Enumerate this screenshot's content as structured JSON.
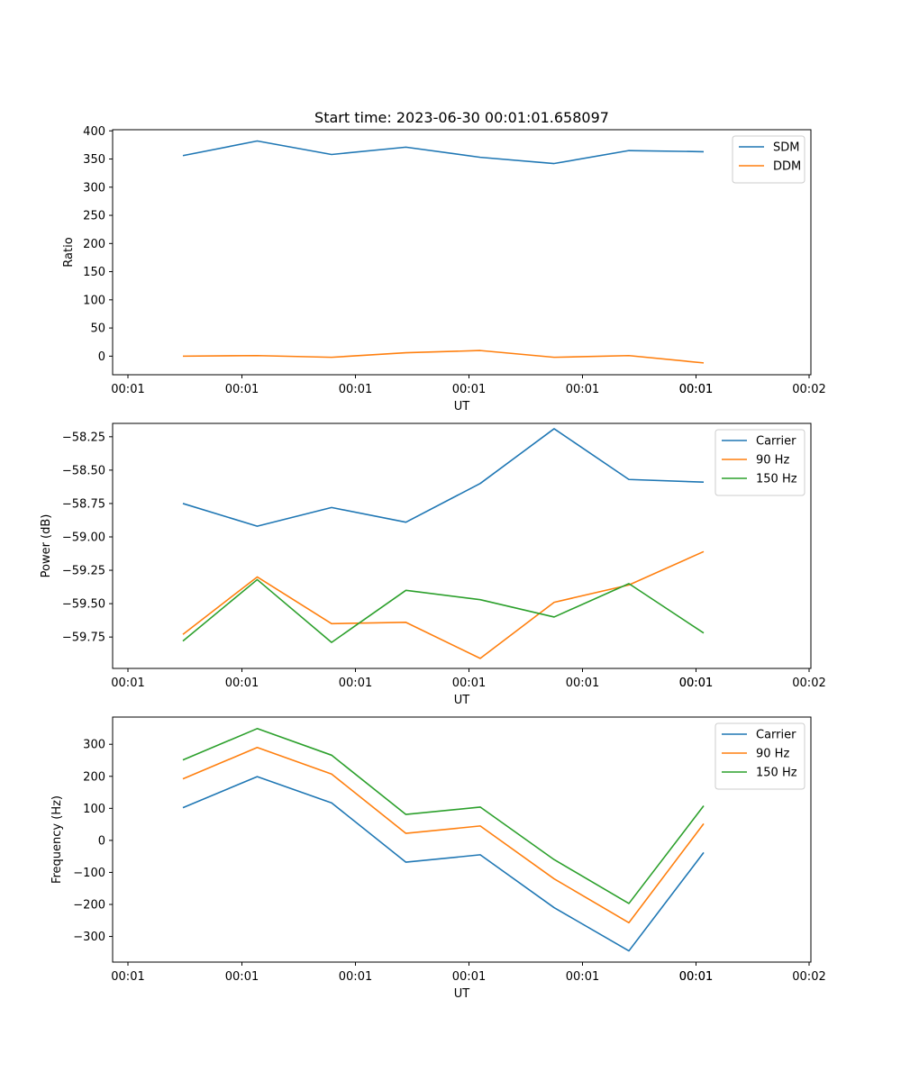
{
  "figure": {
    "title": "Start time: 2023-06-30 00:01:01.658097"
  },
  "chart_data": [
    {
      "type": "line",
      "title": "Start time: 2023-06-30 00:01:01.658097",
      "xlabel": "UT",
      "ylabel": "Ratio",
      "x_tick_labels": [
        "00:01",
        "00:01",
        "00:01",
        "00:01",
        "00:01",
        "00:01",
        "00:01",
        "00:02"
      ],
      "y_ticks": [
        0,
        50,
        100,
        150,
        200,
        250,
        300,
        350,
        400
      ],
      "ylim": [
        -33,
        402
      ],
      "x_points": 8,
      "legend": "top-right",
      "grid": false,
      "series": [
        {
          "name": "SDM",
          "color": "#1f77b4",
          "values": [
            356,
            382,
            358,
            371,
            353,
            342,
            365,
            363
          ]
        },
        {
          "name": "DDM",
          "color": "#ff7f0e",
          "values": [
            0,
            1,
            -2,
            6,
            10,
            -2,
            1,
            -12
          ]
        }
      ]
    },
    {
      "type": "line",
      "title": "",
      "xlabel": "UT",
      "ylabel": "Power (dB)",
      "x_tick_labels": [
        "00:01",
        "00:01",
        "00:01",
        "00:01",
        "00:01",
        "00:01",
        "00:01",
        "00:02"
      ],
      "y_ticks": [
        -59.75,
        -59.5,
        -59.25,
        -59.0,
        -58.75,
        -58.5,
        -58.25
      ],
      "y_tick_labels": [
        "−59.75",
        "−59.50",
        "−59.25",
        "−59.00",
        "−58.75",
        "−58.50",
        "−58.25"
      ],
      "ylim": [
        -59.985,
        -58.15
      ],
      "x_points": 8,
      "legend": "top-right",
      "grid": false,
      "series": [
        {
          "name": "Carrier",
          "color": "#1f77b4",
          "values": [
            -58.75,
            -58.92,
            -58.78,
            -58.89,
            -58.6,
            -58.19,
            -58.57,
            -58.59
          ]
        },
        {
          "name": "90 Hz",
          "color": "#ff7f0e",
          "values": [
            -59.73,
            -59.3,
            -59.65,
            -59.64,
            -59.91,
            -59.49,
            -59.36,
            -59.11
          ]
        },
        {
          "name": "150 Hz",
          "color": "#2ca02c",
          "values": [
            -59.78,
            -59.32,
            -59.79,
            -59.4,
            -59.47,
            -59.6,
            -59.35,
            -59.72
          ]
        }
      ]
    },
    {
      "type": "line",
      "title": "",
      "xlabel": "UT",
      "ylabel": "Frequency (Hz)",
      "x_tick_labels": [
        "00:01",
        "00:01",
        "00:01",
        "00:01",
        "00:01",
        "00:01",
        "00:01",
        "00:02"
      ],
      "y_ticks": [
        -300,
        -200,
        -100,
        0,
        100,
        200,
        300
      ],
      "y_tick_labels": [
        "−300",
        "−200",
        "−100",
        "0",
        "100",
        "200",
        "300"
      ],
      "ylim": [
        -380,
        385
      ],
      "x_points": 8,
      "legend": "top-right",
      "grid": false,
      "series": [
        {
          "name": "Carrier",
          "color": "#1f77b4",
          "values": [
            102,
            199,
            117,
            -68,
            -45,
            -210,
            -345,
            -38
          ]
        },
        {
          "name": "90 Hz",
          "color": "#ff7f0e",
          "values": [
            192,
            290,
            207,
            22,
            45,
            -120,
            -257,
            52
          ]
        },
        {
          "name": "150 Hz",
          "color": "#2ca02c",
          "values": [
            251,
            349,
            266,
            81,
            104,
            -60,
            -197,
            108
          ]
        }
      ]
    }
  ]
}
